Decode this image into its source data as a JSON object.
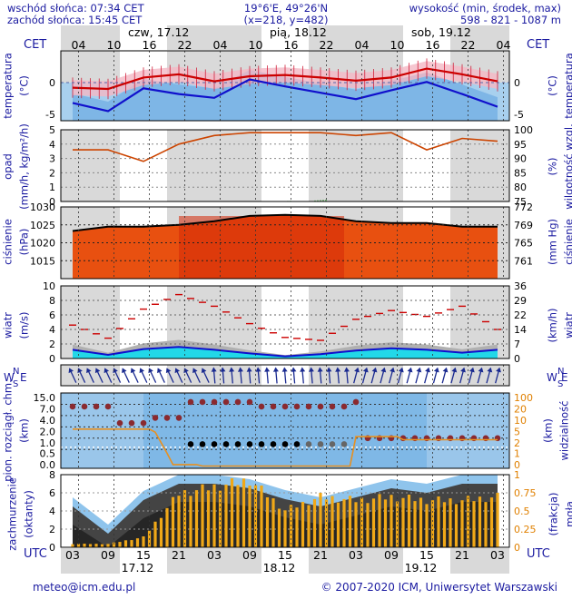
{
  "header": {
    "sunrise": "wschód słońca: 07:34 CET",
    "sunset": "zachód słońca: 15:45 CET",
    "coords": "19°6'E, 49°26'N",
    "grid": "(x=218,  y=482)",
    "elev_label": "wysokość (min, środek, max)",
    "elev_values": "598 - 821 - 1087 m"
  },
  "top_axis": {
    "tz": "CET",
    "hours": [
      "04",
      "10",
      "16",
      "22",
      "04",
      "10",
      "16",
      "22",
      "04",
      "10",
      "16",
      "22",
      "04"
    ],
    "days": [
      "czw, 17.12",
      "pią, 18.12",
      "sob, 19.12"
    ]
  },
  "bottom_axis": {
    "tz": "UTC",
    "hours": [
      "03",
      "09",
      "15",
      "21",
      "03",
      "09",
      "15",
      "21",
      "03",
      "09",
      "15",
      "21",
      "03"
    ],
    "days": [
      "17.12",
      "18.12",
      "19.12"
    ]
  },
  "footer": {
    "email": "meteo@icm.edu.pl",
    "copyright": "© 2007-2020 ICM, Uniwersytet Warszawski"
  },
  "panels": {
    "temp": {
      "label_left": "temperatura",
      "unit_left": "(°C)",
      "unit_right": "(°C)",
      "label_right": "temperatura"
    },
    "precip": {
      "label_left": "opad",
      "unit_left": "(mm/h, kg/m²/h)",
      "unit_right": "(%)",
      "label_right": "wilgotność wzgl."
    },
    "press": {
      "label_left": "ciśnienie",
      "unit_left": "(hPa)",
      "unit_right": "(mm Hg)",
      "label_right": "ciśnienie"
    },
    "wind": {
      "label_left": "wiatr",
      "unit_left": "(m/s)",
      "unit_right": "(km/h)",
      "label_right": "wiatr"
    },
    "wdir": {
      "compass": "N",
      "w": "W",
      "e": "E",
      "s": "S"
    },
    "cloud": {
      "label_left": "pion. rozciągł. chm.",
      "unit_left": "(km)",
      "unit_right": "(km)",
      "label_right": "widzialność"
    },
    "cover": {
      "label_left": "zachmurzenie",
      "unit_left": "(oktanty)",
      "unit_right": "(frakcja)",
      "label_right": "mgła"
    }
  },
  "chart_data": [
    {
      "type": "line",
      "title": "temperatura",
      "ylabel": "(°C)",
      "yticks_left": [
        "0",
        "-5"
      ],
      "yticks_right": [
        "0",
        "-5"
      ],
      "ylim": [
        -6,
        5
      ],
      "x_hours_from_start": [
        0,
        6,
        12,
        18,
        24,
        30,
        36,
        42,
        48,
        54,
        60,
        66,
        72
      ],
      "series": [
        {
          "role": "air temperature",
          "color": "#cc0000",
          "values": [
            -0.8,
            -1.0,
            0.8,
            1.3,
            0.2,
            1.0,
            1.2,
            0.8,
            0.3,
            0.8,
            2.2,
            1.3,
            0.2
          ]
        },
        {
          "role": "dew point",
          "color": "#1010cc",
          "values": [
            -3.2,
            -4.5,
            -0.9,
            -1.8,
            -2.4,
            0.5,
            -0.6,
            -1.6,
            -2.6,
            -1.2,
            0.1,
            -1.8,
            -3.8
          ]
        }
      ]
    },
    {
      "type": "line",
      "title": "opad",
      "yticks_left": [
        "5",
        "4",
        "3",
        "2",
        "1",
        "0"
      ],
      "yticks_right": [
        "100",
        "95",
        "90",
        "85",
        "80",
        "75"
      ],
      "ylim": [
        0,
        5
      ],
      "y2lim": [
        75,
        100
      ],
      "series": [
        {
          "role": "relative humidity (%)",
          "color": "#cc4400",
          "axis": "right",
          "values": [
            93,
            93,
            89,
            95,
            98,
            99,
            99,
            99,
            98,
            99,
            93,
            97,
            96
          ]
        },
        {
          "role": "precipitation (mm/h)",
          "color": "#1a8a1a",
          "values": [
            0,
            0,
            0,
            0,
            0,
            0,
            0.05,
            0.15,
            0,
            0,
            0,
            0,
            0
          ]
        }
      ]
    },
    {
      "type": "line",
      "title": "ciśnienie",
      "yticks_left": [
        "1030",
        "1025",
        "1020",
        "1015"
      ],
      "yticks_right": [
        "772",
        "769",
        "765",
        "761"
      ],
      "ylim": [
        1010,
        1030
      ],
      "series": [
        {
          "role": "sea level pressure",
          "color": "#000000",
          "values": [
            1023.3,
            1024.5,
            1024.5,
            1025.0,
            1026.0,
            1027.5,
            1027.8,
            1027.5,
            1026.0,
            1025.5,
            1025.5,
            1024.5,
            1024.5
          ]
        }
      ]
    },
    {
      "type": "line",
      "title": "wiatr",
      "yticks_left": [
        "10",
        "8",
        "6",
        "4",
        "2",
        "0"
      ],
      "yticks_right": [
        "36",
        "29",
        "22",
        "14",
        "7",
        "0"
      ],
      "ylim": [
        0,
        10
      ],
      "series": [
        {
          "role": "mean wind",
          "color": "#1010cc",
          "values": [
            1.2,
            0.5,
            1.3,
            1.6,
            1.2,
            0.7,
            0.3,
            0.6,
            1.1,
            1.4,
            1.2,
            0.8,
            1.2
          ]
        },
        {
          "role": "wind gusts",
          "color": "#cc0000",
          "values": [
            4.6,
            2.8,
            6.8,
            8.8,
            7.2,
            4.8,
            2.9,
            2.5,
            5.4,
            6.6,
            5.8,
            7.2,
            4.0
          ]
        }
      ]
    },
    {
      "type": "scatter",
      "title": "pion. rozciągł. chm.",
      "yticks_left": [
        "15.0",
        "7.0",
        "4.0",
        "2.0",
        "1.0",
        "0.5",
        "0.0"
      ],
      "yticks_right": [
        "100",
        "20",
        "10",
        "5",
        "2",
        "1",
        "0"
      ]
    },
    {
      "type": "bar",
      "title": "zachmurzenie",
      "yticks_left": [
        "8",
        "6",
        "4",
        "2",
        "0"
      ],
      "yticks_right": [
        "1",
        "0.75",
        "0.5",
        "0.25",
        "0"
      ],
      "ylim": [
        0,
        8
      ],
      "series": [
        {
          "role": "total cloud cover (oktas)",
          "color": "#333333",
          "values": [
            5.5,
            2.5,
            6.2,
            8,
            8,
            7.5,
            6.3,
            5.5,
            6.5,
            7.5,
            7.0,
            8,
            8
          ]
        },
        {
          "role": "fog fraction",
          "color": "#f0a018",
          "axis": "right",
          "values": [
            0.05,
            0.05,
            0.15,
            0.8,
            0.9,
            1.0,
            0.55,
            0.75,
            0.7,
            0.75,
            0.7,
            0.7,
            0.75
          ]
        }
      ]
    }
  ]
}
